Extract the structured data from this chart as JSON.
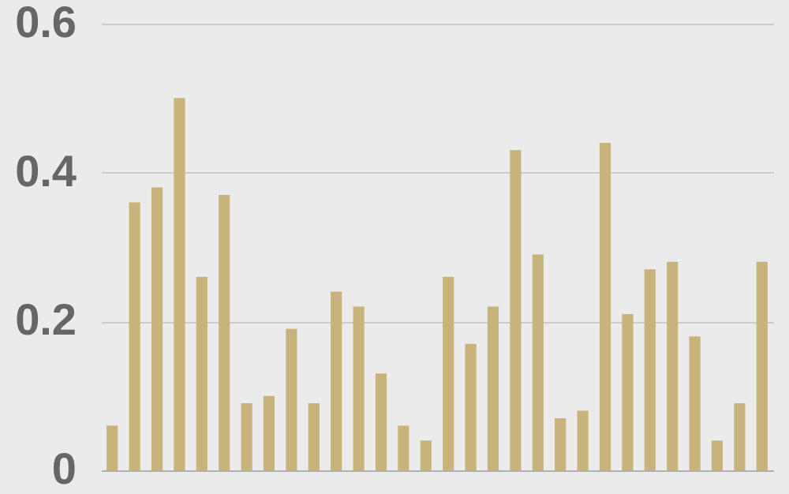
{
  "chart_data": {
    "type": "bar",
    "categories": [
      null,
      null,
      null,
      null,
      null,
      null,
      null,
      null,
      null,
      null,
      null,
      null,
      null,
      null,
      null,
      null,
      null,
      null,
      null,
      null,
      null,
      null,
      null,
      null,
      null,
      null,
      null,
      null,
      null,
      null
    ],
    "values": [
      0.06,
      0.36,
      0.38,
      0.5,
      0.26,
      0.37,
      0.09,
      0.1,
      0.19,
      0.09,
      0.24,
      0.22,
      0.13,
      0.06,
      0.04,
      0.26,
      0.17,
      0.22,
      0.43,
      0.29,
      0.07,
      0.08,
      0.44,
      0.21,
      0.27,
      0.28,
      0.18,
      0.04,
      0.09,
      0.28
    ],
    "color": "#c8b47b",
    "ylim": [
      0,
      0.6
    ],
    "yticks": [
      0,
      0.2,
      0.4,
      0.6
    ],
    "grid": "y",
    "tick_labels": "y"
  }
}
